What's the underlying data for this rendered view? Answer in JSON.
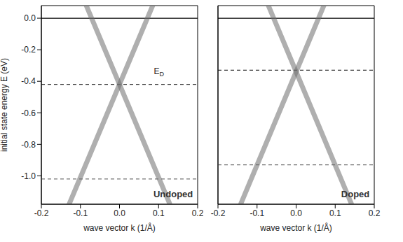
{
  "chart_data": [
    {
      "type": "line",
      "y_label": "initial state energy E (eV)",
      "x_label": "wave vector k (1/Å)",
      "xlim": [
        -0.2,
        0.2
      ],
      "xticks": [
        -0.2,
        -0.1,
        {
          "value": 0,
          "label": "0.0"
        },
        0.1,
        0.2
      ],
      "ylim": [
        -1.18,
        0.08
      ],
      "yticks": [
        {
          "value": 0,
          "label": "0.0"
        },
        -0.2,
        -0.4,
        -0.6,
        -0.8,
        {
          "value": -1,
          "label": "-1.0"
        }
      ],
      "series": [
        {
          "x": [
            -0.085,
            0,
            0.129
          ],
          "values": [
            0.08,
            -0.42,
            -1.18
          ],
          "color": "#6e6e6e"
        },
        {
          "x": [
            0.085,
            0,
            -0.129
          ],
          "values": [
            0.08,
            -0.42,
            -1.18
          ],
          "color": "#6e6e6e"
        }
      ],
      "reference_lines": [
        {
          "y": 0,
          "line_style": "solid",
          "color": "#000000"
        },
        {
          "y": -0.42,
          "line_style": "dashed",
          "color": "#333333"
        },
        {
          "y": -1.02,
          "line_style": "dashed",
          "color": "#777777"
        }
      ],
      "annotations": [
        {
          "text": "E",
          "subscript": "D"
        },
        {
          "text": "Undoped"
        }
      ]
    },
    {
      "type": "line",
      "x_label": "wave vector k (1/Å)",
      "xlim": [
        -0.2,
        0.2
      ],
      "xticks": [
        -0.2,
        -0.1,
        {
          "value": 0,
          "label": "0.0"
        },
        0.1,
        0.2
      ],
      "ylim": [
        -1.18,
        0.08
      ],
      "yticks": [
        {
          "value": 0,
          "label": "0.0"
        },
        -0.2,
        -0.4,
        -0.6,
        -0.8,
        {
          "value": -1,
          "label": "-1.0"
        }
      ],
      "tick_labels": "x",
      "series": [
        {
          "x": [
            -0.071,
            0,
            0.142
          ],
          "values": [
            0.08,
            -0.34,
            -1.18
          ],
          "color": "#6e6e6e"
        },
        {
          "x": [
            0.071,
            0,
            -0.142
          ],
          "values": [
            0.08,
            -0.34,
            -1.18
          ],
          "color": "#6e6e6e"
        }
      ],
      "reference_lines": [
        {
          "y": 0,
          "line_style": "solid",
          "color": "#000000"
        },
        {
          "y": -0.33,
          "line_style": "dashed",
          "color": "#333333"
        },
        {
          "y": -0.93,
          "line_style": "dashed",
          "color": "#777777"
        }
      ],
      "annotations": [
        {
          "text": "Doped"
        }
      ]
    }
  ]
}
